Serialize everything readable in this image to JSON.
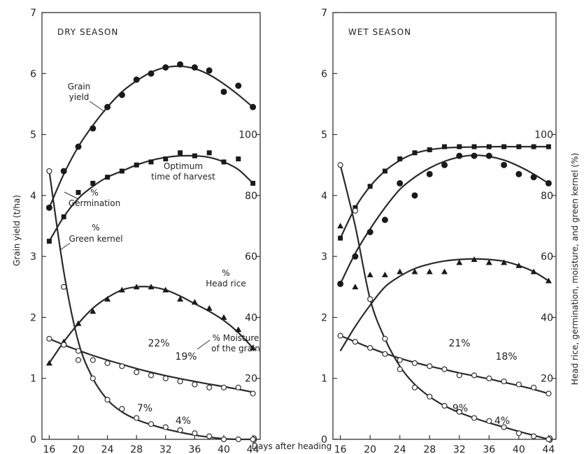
{
  "chart_data": [
    {
      "type": "line",
      "title": "DRY SEASON",
      "x": [
        16,
        18,
        20,
        22,
        24,
        26,
        28,
        30,
        32,
        34,
        36,
        38,
        40,
        42,
        44
      ],
      "xlim": [
        15,
        45
      ],
      "ylim_left": [
        0,
        7
      ],
      "ylim_right": [
        0,
        140
      ],
      "left_ticks": [
        0,
        1,
        2,
        3,
        4,
        5,
        6,
        7
      ],
      "right_ticks": [
        0,
        20,
        40,
        60,
        80,
        100
      ],
      "x_ticks": [
        16,
        20,
        24,
        28,
        32,
        36,
        40,
        44
      ],
      "series": [
        {
          "name": "Grain yield",
          "axis": "left",
          "marker": "dot",
          "values": [
            3.8,
            4.4,
            4.8,
            5.1,
            5.45,
            5.65,
            5.9,
            6.0,
            6.1,
            6.15,
            6.1,
            6.05,
            5.7,
            5.8,
            5.45
          ],
          "fit": [
            3.8,
            4.35,
            4.8,
            5.15,
            5.45,
            5.7,
            5.88,
            6.02,
            6.1,
            6.12,
            6.08,
            5.98,
            5.83,
            5.65,
            5.45
          ]
        },
        {
          "name": "% Germination",
          "axis": "right",
          "marker": "square",
          "values": [
            65,
            73,
            81,
            84,
            86,
            88,
            90,
            91,
            92,
            94,
            93,
            94,
            91,
            92,
            84
          ],
          "fit": [
            65,
            73,
            79,
            83,
            86,
            88,
            90,
            91.5,
            92.5,
            93,
            93,
            92.5,
            91,
            88.5,
            84
          ]
        },
        {
          "name": "% Green kernel",
          "axis": "right",
          "marker": "circle",
          "values": [
            88,
            50,
            26,
            20,
            13,
            10,
            7,
            5,
            4,
            3,
            2,
            1,
            0,
            0,
            0
          ],
          "fit": [
            88,
            55,
            32,
            20,
            13,
            9,
            6.5,
            4.8,
            3.4,
            2.3,
            1.4,
            0.7,
            0.2,
            0,
            0
          ]
        },
        {
          "name": "% Head rice",
          "axis": "right",
          "marker": "triangle",
          "values": [
            25,
            32,
            38,
            42,
            46,
            49,
            50,
            50,
            49,
            46,
            45,
            43,
            40,
            36,
            30
          ],
          "fit": [
            25,
            32,
            38,
            43,
            46.5,
            49,
            50,
            50,
            49,
            47,
            44.5,
            42,
            39,
            35,
            30
          ]
        },
        {
          "name": "% Moisture of the grain",
          "axis": "right",
          "marker": "circle",
          "values": [
            33,
            31,
            29,
            26,
            25,
            24,
            22,
            21,
            20,
            19,
            18,
            17,
            17,
            17,
            15
          ],
          "fit": [
            33,
            31,
            29.2,
            27.5,
            26,
            24.6,
            23.2,
            22,
            20.9,
            19.9,
            19,
            18.1,
            17.3,
            16.4,
            15.5
          ]
        }
      ],
      "annotations": {
        "grain_yield": [
          "Grain",
          "yield"
        ],
        "optimum": [
          "Optimum",
          "time of harvest"
        ],
        "germination": [
          "%",
          "Germination"
        ],
        "green_kernel": [
          "%",
          "Green kernel"
        ],
        "head_rice": [
          "%",
          "Head rice"
        ],
        "moisture": [
          "% Moisture",
          "of the grain"
        ],
        "pct_22": "22%",
        "pct_19": "19%",
        "pct_7": "7%",
        "pct_4": "4%"
      }
    },
    {
      "type": "line",
      "title": "WET SEASON",
      "x": [
        16,
        18,
        20,
        22,
        24,
        26,
        28,
        30,
        32,
        34,
        36,
        38,
        40,
        42,
        44
      ],
      "xlim": [
        15,
        45
      ],
      "ylim_left": [
        0,
        7
      ],
      "ylim_right": [
        0,
        140
      ],
      "left_ticks": [
        0,
        1,
        2,
        3,
        4,
        5,
        6,
        7
      ],
      "right_ticks": [
        0,
        20,
        40,
        60,
        80,
        100
      ],
      "x_ticks": [
        16,
        20,
        24,
        28,
        32,
        36,
        40,
        44
      ],
      "series": [
        {
          "name": "Grain yield",
          "axis": "left",
          "marker": "dot",
          "values": [
            2.55,
            3.0,
            3.4,
            3.6,
            4.2,
            4.0,
            4.35,
            4.5,
            4.65,
            4.65,
            4.65,
            4.5,
            4.35,
            4.3,
            4.2
          ],
          "fit": [
            2.55,
            3.05,
            3.45,
            3.8,
            4.1,
            4.3,
            4.45,
            4.56,
            4.63,
            4.66,
            4.64,
            4.58,
            4.48,
            4.35,
            4.2
          ]
        },
        {
          "name": "% Germination",
          "axis": "right",
          "marker": "square",
          "values": [
            66,
            76,
            83,
            88,
            92,
            94,
            95,
            96,
            96,
            96,
            96,
            96,
            96,
            96,
            96
          ],
          "fit": [
            66,
            76,
            83,
            88,
            91.5,
            93.8,
            95,
            95.6,
            95.8,
            95.9,
            96,
            96,
            96,
            96,
            96
          ]
        },
        {
          "name": "% Green kernel",
          "axis": "right",
          "marker": "circle",
          "values": [
            90,
            75,
            46,
            33,
            23,
            17,
            14,
            11,
            9,
            7,
            6,
            4,
            2,
            1,
            0
          ],
          "fit": [
            90,
            70,
            46,
            33,
            24,
            18,
            14,
            11,
            8.8,
            7,
            5.4,
            4,
            2.6,
            1.3,
            0
          ]
        },
        {
          "name": "% Head rice",
          "axis": "right",
          "marker": "triangle",
          "values": [
            70,
            50,
            54,
            54,
            55,
            55,
            55,
            55,
            58,
            59,
            58,
            58,
            57,
            55,
            52
          ],
          "fit": [
            29,
            37,
            44,
            50,
            53.5,
            56,
            57.5,
            58.5,
            59,
            59.2,
            59,
            58.4,
            57,
            55,
            52
          ]
        },
        {
          "name": "% Moisture",
          "axis": "right",
          "marker": "circle",
          "values": [
            34,
            32,
            30,
            28,
            26,
            25,
            24,
            23,
            21,
            21,
            20,
            19,
            18,
            17,
            15
          ],
          "fit": [
            34,
            32,
            30,
            28.2,
            26.6,
            25.2,
            24,
            22.9,
            21.8,
            20.8,
            19.8,
            18.7,
            17.6,
            16.4,
            15
          ]
        }
      ],
      "annotations": {
        "pct_21": "21%",
        "pct_18": "18%",
        "pct_9": "9%",
        "pct_4": "4%"
      }
    }
  ],
  "axes": {
    "xlabel": "Days after heading",
    "ylabel_left": "Grain yield (t/ha)",
    "ylabel_right": "Head rice, germination, moisture, and green kernel (%)"
  }
}
